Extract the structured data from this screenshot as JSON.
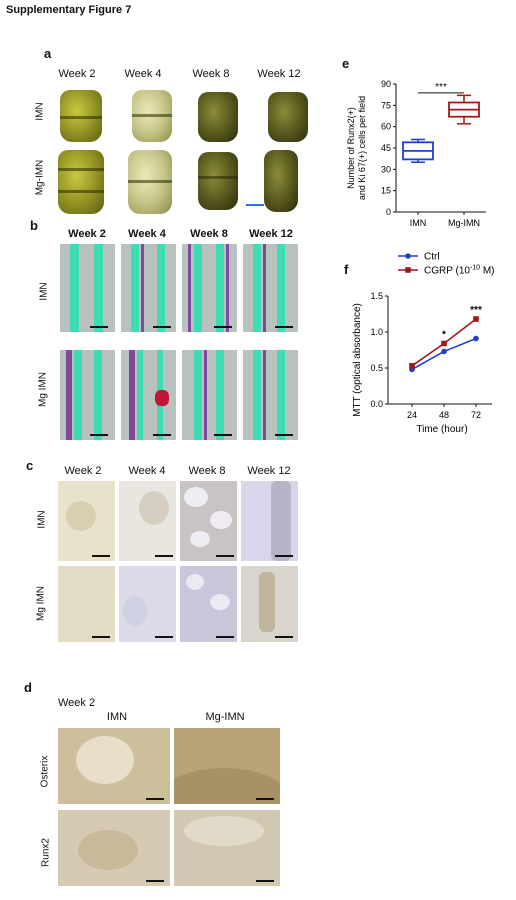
{
  "figure": {
    "title": "Supplementary Figure 7"
  },
  "panel_a": {
    "label": "a",
    "columns": [
      "Week 2",
      "Week 4",
      "Week 8",
      "Week 12"
    ],
    "rows": [
      "IMN",
      "Mg-IMN"
    ]
  },
  "panel_b": {
    "label": "b",
    "columns": [
      "Week 2",
      "Week 4",
      "Week 8",
      "Week 12"
    ],
    "rows": [
      "IMN",
      "Mg IMN"
    ]
  },
  "panel_c": {
    "label": "c",
    "columns": [
      "Week 2",
      "Week 4",
      "Week 8",
      "Week 12"
    ],
    "rows": [
      "IMN",
      "Mg IMN"
    ]
  },
  "panel_d": {
    "label": "d",
    "header": "Week 2",
    "columns": [
      "IMN",
      "Mg-IMN"
    ],
    "rows": [
      "Osterix",
      "Runx2"
    ]
  },
  "colors": {
    "ct_yellow": "#a3a32c",
    "histo_green": "#3ddcb4",
    "histo_purple": "#7e4aa0",
    "histo_red": "#c0163a",
    "chart_blue": "#1f3fd0",
    "chart_red": "#a01818",
    "scale_blue": "#2f6fd8"
  },
  "chart_data": [
    {
      "panel": "e",
      "type": "boxplot",
      "categories": [
        "IMN",
        "Mg-IMN"
      ],
      "ylabel_line1": "Number of Runx2(+)",
      "ylabel_line2": "and Ki 67(+) cells  per field",
      "ylim": [
        0,
        90
      ],
      "yticks": [
        "0",
        "15",
        "30",
        "45",
        "60",
        "75",
        "90"
      ],
      "boxes": [
        {
          "name": "IMN",
          "min": 35,
          "q1": 37,
          "median": 43,
          "q3": 49,
          "max": 51,
          "color": "#1f3fd0"
        },
        {
          "name": "Mg-IMN",
          "min": 62,
          "q1": 67,
          "median": 72,
          "q3": 77,
          "max": 82,
          "color": "#a01818"
        }
      ],
      "significance": "***"
    },
    {
      "panel": "f",
      "type": "line",
      "x": [
        24,
        48,
        72
      ],
      "xticks": [
        "24",
        "48",
        "72"
      ],
      "xlabel": "Time (hour)",
      "ylabel": "MTT (optical absorbance)",
      "ylim": [
        0,
        1.5
      ],
      "yticks": [
        "0.0",
        "0.5",
        "1.0",
        "1.5"
      ],
      "legend_position": "top-left",
      "series": [
        {
          "name": "Ctrl",
          "values": [
            0.48,
            0.73,
            0.91
          ],
          "color": "#1f3fd0",
          "marker": "circle"
        },
        {
          "name": "CGRP (10",
          "name_sup": "-10",
          "name_tail": " M)",
          "values": [
            0.53,
            0.84,
            1.18
          ],
          "color": "#a01818",
          "marker": "square"
        }
      ],
      "annotations": [
        {
          "x": 48,
          "text": "*"
        },
        {
          "x": 72,
          "text": "***"
        }
      ]
    }
  ]
}
